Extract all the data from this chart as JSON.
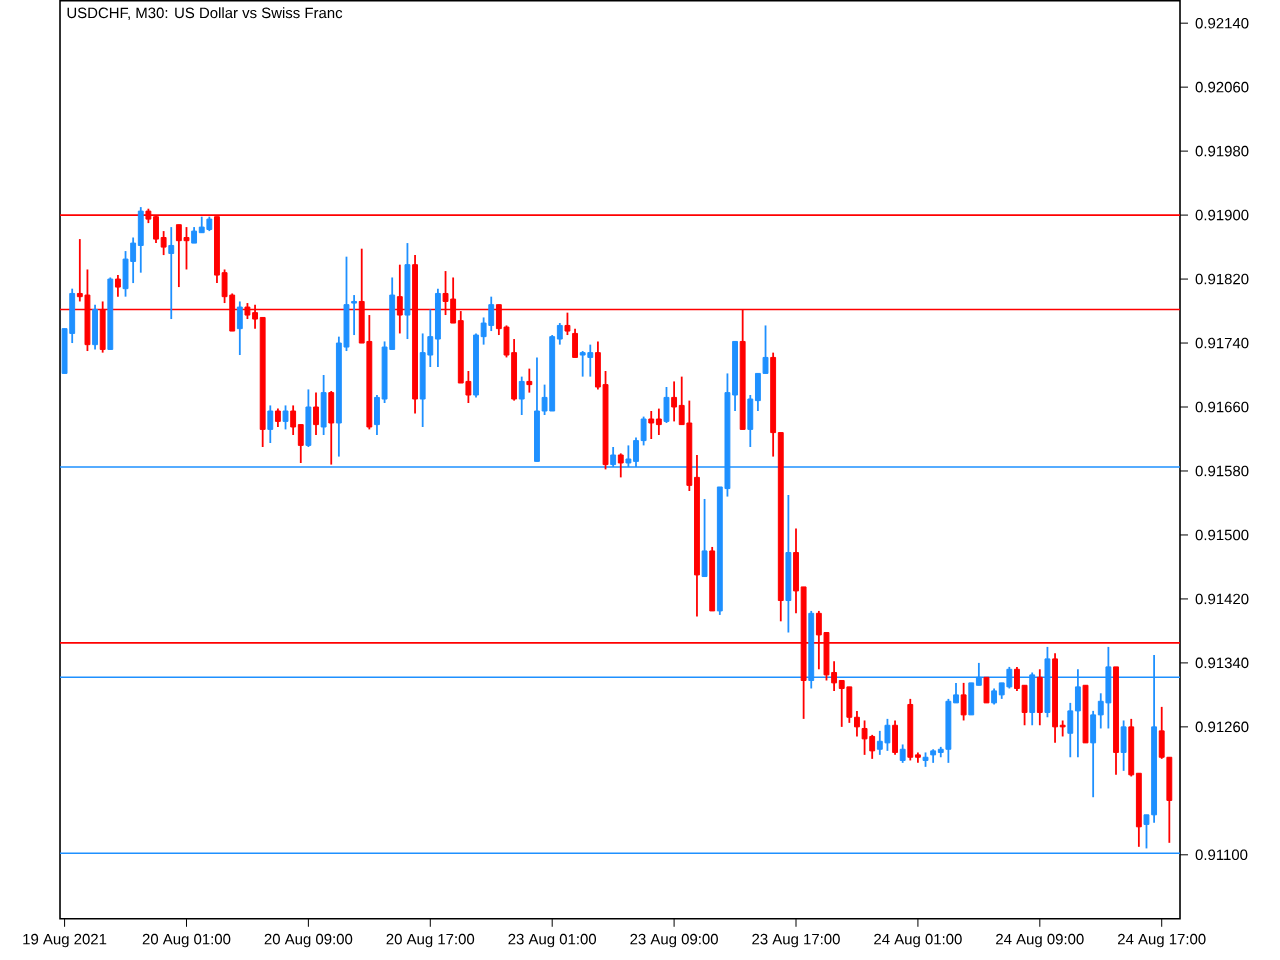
{
  "chart_data": {
    "type": "candlestick",
    "title": "USDCHF, M30:  US Dollar vs Swiss Franc",
    "categories": [
      "19 Aug 2021",
      null,
      null,
      null,
      null,
      null,
      null,
      null,
      null,
      null,
      null,
      null,
      null,
      null,
      null,
      null,
      "20 Aug 01:00",
      null,
      null,
      null,
      null,
      null,
      null,
      null,
      null,
      null,
      null,
      null,
      null,
      null,
      null,
      null,
      "20 Aug 09:00",
      null,
      null,
      null,
      null,
      null,
      null,
      null,
      null,
      null,
      null,
      null,
      null,
      null,
      null,
      null,
      "20 Aug 17:00",
      null,
      null,
      null,
      null,
      null,
      null,
      null,
      null,
      null,
      null,
      null,
      null,
      null,
      null,
      null,
      "23 Aug 01:00",
      null,
      null,
      null,
      null,
      null,
      null,
      null,
      null,
      null,
      null,
      null,
      null,
      null,
      null,
      null,
      "23 Aug 09:00",
      null,
      null,
      null,
      null,
      null,
      null,
      null,
      null,
      null,
      null,
      null,
      null,
      null,
      null,
      null,
      "23 Aug 17:00",
      null,
      null,
      null,
      null,
      null,
      null,
      null,
      null,
      null,
      null,
      null,
      null,
      null,
      null,
      null,
      "24 Aug 01:00",
      null,
      null,
      null,
      null,
      null,
      null,
      null,
      null,
      null,
      null,
      null,
      null,
      null,
      null,
      null,
      "24 Aug 09:00",
      null,
      null,
      null,
      null,
      null,
      null,
      null,
      null,
      null,
      null,
      null,
      null,
      null,
      null,
      null,
      "24 Aug 17:00",
      null
    ],
    "ohlc": [
      [
        0.91702,
        0.91758,
        0.91702,
        0.91758
      ],
      [
        0.91752,
        0.91808,
        0.9174,
        0.91802
      ],
      [
        0.91802,
        0.9187,
        0.91792,
        0.91798
      ],
      [
        0.918,
        0.91832,
        0.9173,
        0.91738
      ],
      [
        0.91738,
        0.91788,
        0.91732,
        0.91782
      ],
      [
        0.91782,
        0.91792,
        0.91728,
        0.91732
      ],
      [
        0.91732,
        0.91822,
        0.91732,
        0.9182
      ],
      [
        0.9182,
        0.91825,
        0.91798,
        0.9181
      ],
      [
        0.91808,
        0.91855,
        0.91798,
        0.91845
      ],
      [
        0.91842,
        0.91872,
        0.91815,
        0.91865
      ],
      [
        0.91862,
        0.9191,
        0.91828,
        0.91905
      ],
      [
        0.91905,
        0.91908,
        0.9189,
        0.91895
      ],
      [
        0.91898,
        0.919,
        0.91865,
        0.9187
      ],
      [
        0.91872,
        0.9188,
        0.9185,
        0.9186
      ],
      [
        0.91852,
        0.91885,
        0.9177,
        0.91862
      ],
      [
        0.91888,
        0.91888,
        0.9181,
        0.91868
      ],
      [
        0.91872,
        0.91885,
        0.91832,
        0.91868
      ],
      [
        0.91865,
        0.91885,
        0.91865,
        0.9188
      ],
      [
        0.91878,
        0.91898,
        0.91878,
        0.91885
      ],
      [
        0.91882,
        0.91898,
        0.9188,
        0.91895
      ],
      [
        0.91898,
        0.91898,
        0.91815,
        0.91825
      ],
      [
        0.91828,
        0.91832,
        0.9179,
        0.91798
      ],
      [
        0.918,
        0.91802,
        0.91755,
        0.91755
      ],
      [
        0.91758,
        0.91792,
        0.91725,
        0.91785
      ],
      [
        0.91785,
        0.9179,
        0.9177,
        0.91775
      ],
      [
        0.91778,
        0.91788,
        0.91758,
        0.9177
      ],
      [
        0.91772,
        0.91772,
        0.9161,
        0.91632
      ],
      [
        0.91632,
        0.91662,
        0.91615,
        0.91655
      ],
      [
        0.91655,
        0.91658,
        0.91635,
        0.91642
      ],
      [
        0.91642,
        0.91662,
        0.91632,
        0.91655
      ],
      [
        0.91655,
        0.91662,
        0.91625,
        0.91635
      ],
      [
        0.91638,
        0.91638,
        0.9159,
        0.91612
      ],
      [
        0.91612,
        0.91682,
        0.9161,
        0.9166
      ],
      [
        0.9166,
        0.91678,
        0.91625,
        0.91638
      ],
      [
        0.91635,
        0.917,
        0.91625,
        0.91678
      ],
      [
        0.91678,
        0.9168,
        0.91588,
        0.9164
      ],
      [
        0.9164,
        0.91748,
        0.91598,
        0.9174
      ],
      [
        0.91735,
        0.91848,
        0.9173,
        0.91788
      ],
      [
        0.9179,
        0.918,
        0.9175,
        0.91792
      ],
      [
        0.91792,
        0.91858,
        0.9174,
        0.9174
      ],
      [
        0.91742,
        0.91775,
        0.91632,
        0.91635
      ],
      [
        0.91638,
        0.91675,
        0.91625,
        0.91672
      ],
      [
        0.9167,
        0.91742,
        0.91665,
        0.91735
      ],
      [
        0.91732,
        0.91822,
        0.91732,
        0.918
      ],
      [
        0.91798,
        0.91838,
        0.91752,
        0.91775
      ],
      [
        0.91775,
        0.91865,
        0.91745,
        0.91838
      ],
      [
        0.91838,
        0.9185,
        0.91652,
        0.9167
      ],
      [
        0.9167,
        0.91752,
        0.91635,
        0.91728
      ],
      [
        0.91725,
        0.91782,
        0.9171,
        0.91748
      ],
      [
        0.91745,
        0.91808,
        0.9171,
        0.91802
      ],
      [
        0.91802,
        0.9183,
        0.91775,
        0.91792
      ],
      [
        0.91795,
        0.91822,
        0.91765,
        0.91765
      ],
      [
        0.91768,
        0.9178,
        0.9169,
        0.9169
      ],
      [
        0.91692,
        0.91705,
        0.91665,
        0.91675
      ],
      [
        0.91675,
        0.91752,
        0.91672,
        0.9175
      ],
      [
        0.91748,
        0.91772,
        0.91738,
        0.91765
      ],
      [
        0.91762,
        0.91798,
        0.91755,
        0.91788
      ],
      [
        0.91788,
        0.91788,
        0.9175,
        0.91758
      ],
      [
        0.9176,
        0.91762,
        0.91722,
        0.91725
      ],
      [
        0.91728,
        0.91745,
        0.91668,
        0.9167
      ],
      [
        0.9167,
        0.91698,
        0.9165,
        0.91692
      ],
      [
        0.91692,
        0.91708,
        0.91678,
        0.91688
      ],
      [
        0.91592,
        0.91722,
        0.91592,
        0.91655
      ],
      [
        0.91655,
        0.91688,
        0.9165,
        0.91672
      ],
      [
        0.91655,
        0.9175,
        0.91655,
        0.91748
      ],
      [
        0.91745,
        0.91765,
        0.91738,
        0.91762
      ],
      [
        0.91762,
        0.91778,
        0.9175,
        0.91755
      ],
      [
        0.91752,
        0.91758,
        0.91722,
        0.91722
      ],
      [
        0.91725,
        0.9173,
        0.91698,
        0.91728
      ],
      [
        0.91722,
        0.91738,
        0.91698,
        0.91728
      ],
      [
        0.91728,
        0.91742,
        0.91682,
        0.91685
      ],
      [
        0.91688,
        0.91705,
        0.91582,
        0.91588
      ],
      [
        0.91588,
        0.9161,
        0.91585,
        0.916
      ],
      [
        0.916,
        0.91602,
        0.91572,
        0.9159
      ],
      [
        0.9159,
        0.91612,
        0.91585,
        0.91595
      ],
      [
        0.91592,
        0.91622,
        0.91585,
        0.91618
      ],
      [
        0.91618,
        0.91648,
        0.91612,
        0.91645
      ],
      [
        0.91645,
        0.91655,
        0.9162,
        0.9164
      ],
      [
        0.91645,
        0.91658,
        0.91625,
        0.91638
      ],
      [
        0.91642,
        0.91685,
        0.9164,
        0.91672
      ],
      [
        0.91672,
        0.91692,
        0.91642,
        0.9166
      ],
      [
        0.91662,
        0.91698,
        0.91638,
        0.91638
      ],
      [
        0.9164,
        0.91668,
        0.91555,
        0.91562
      ],
      [
        0.91572,
        0.916,
        0.91398,
        0.9145
      ],
      [
        0.91448,
        0.91545,
        0.91448,
        0.9148
      ],
      [
        0.9148,
        0.91485,
        0.91405,
        0.91405
      ],
      [
        0.91405,
        0.9156,
        0.914,
        0.9156
      ],
      [
        0.91558,
        0.91702,
        0.91548,
        0.91678
      ],
      [
        0.91675,
        0.91742,
        0.91655,
        0.91742
      ],
      [
        0.91742,
        0.91782,
        0.91632,
        0.91632
      ],
      [
        0.91632,
        0.91675,
        0.9161,
        0.9167
      ],
      [
        0.91668,
        0.91702,
        0.91655,
        0.91702
      ],
      [
        0.91702,
        0.91762,
        0.91702,
        0.91722
      ],
      [
        0.91722,
        0.91728,
        0.91598,
        0.91628
      ],
      [
        0.91628,
        0.91628,
        0.91392,
        0.91418
      ],
      [
        0.91418,
        0.9155,
        0.91378,
        0.91478
      ],
      [
        0.91478,
        0.91508,
        0.91402,
        0.9143
      ],
      [
        0.91435,
        0.91435,
        0.9127,
        0.91318
      ],
      [
        0.91318,
        0.91405,
        0.91308,
        0.91402
      ],
      [
        0.91402,
        0.91405,
        0.91332,
        0.91375
      ],
      [
        0.91378,
        0.91378,
        0.91318,
        0.91325
      ],
      [
        0.91328,
        0.91342,
        0.91305,
        0.91315
      ],
      [
        0.91318,
        0.91318,
        0.9126,
        0.91308
      ],
      [
        0.9131,
        0.9131,
        0.91265,
        0.91272
      ],
      [
        0.91272,
        0.9128,
        0.91248,
        0.9126
      ],
      [
        0.91258,
        0.91268,
        0.91225,
        0.91245
      ],
      [
        0.91248,
        0.9125,
        0.9122,
        0.9123
      ],
      [
        0.91232,
        0.91255,
        0.91225,
        0.91242
      ],
      [
        0.9124,
        0.9127,
        0.9123,
        0.91262
      ],
      [
        0.91262,
        0.91268,
        0.91225,
        0.91228
      ],
      [
        0.91218,
        0.91238,
        0.91215,
        0.91232
      ],
      [
        0.91288,
        0.91295,
        0.91218,
        0.91222
      ],
      [
        0.91225,
        0.91228,
        0.91215,
        0.91222
      ],
      [
        0.91218,
        0.91228,
        0.9121,
        0.91222
      ],
      [
        0.91225,
        0.91232,
        0.91215,
        0.9123
      ],
      [
        0.91228,
        0.91235,
        0.91222,
        0.91232
      ],
      [
        0.91232,
        0.91295,
        0.91215,
        0.91292
      ],
      [
        0.9129,
        0.91315,
        0.9129,
        0.913
      ],
      [
        0.913,
        0.91315,
        0.91268,
        0.91275
      ],
      [
        0.91275,
        0.91315,
        0.91275,
        0.91315
      ],
      [
        0.91312,
        0.9134,
        0.91312,
        0.91322
      ],
      [
        0.91322,
        0.91322,
        0.9129,
        0.9129
      ],
      [
        0.9129,
        0.91308,
        0.91288,
        0.91305
      ],
      [
        0.913,
        0.91315,
        0.91295,
        0.91315
      ],
      [
        0.9131,
        0.91335,
        0.91308,
        0.91332
      ],
      [
        0.91332,
        0.91335,
        0.91305,
        0.91308
      ],
      [
        0.91312,
        0.91312,
        0.91262,
        0.91278
      ],
      [
        0.91278,
        0.91328,
        0.91262,
        0.91325
      ],
      [
        0.91322,
        0.91332,
        0.91262,
        0.91278
      ],
      [
        0.91278,
        0.9136,
        0.91272,
        0.91345
      ],
      [
        0.91345,
        0.91352,
        0.9124,
        0.9126
      ],
      [
        0.91262,
        0.91268,
        0.91248,
        0.9126
      ],
      [
        0.91252,
        0.9129,
        0.91222,
        0.9128
      ],
      [
        0.9128,
        0.91332,
        0.91222,
        0.9131
      ],
      [
        0.91312,
        0.91312,
        0.9124,
        0.9124
      ],
      [
        0.9124,
        0.9128,
        0.91172,
        0.91275
      ],
      [
        0.91275,
        0.91302,
        0.91258,
        0.91292
      ],
      [
        0.9129,
        0.9136,
        0.91258,
        0.91335
      ],
      [
        0.91335,
        0.91335,
        0.912,
        0.91228
      ],
      [
        0.91228,
        0.91268,
        0.91205,
        0.9126
      ],
      [
        0.9126,
        0.9127,
        0.91198,
        0.912
      ],
      [
        0.91202,
        0.91202,
        0.9111,
        0.91135
      ],
      [
        0.91138,
        0.9115,
        0.91108,
        0.9115
      ],
      [
        0.9115,
        0.9135,
        0.9114,
        0.9126
      ],
      [
        0.91255,
        0.91285,
        0.9122,
        0.91222
      ],
      [
        0.91222,
        0.91222,
        0.91115,
        0.91168
      ]
    ],
    "ylim": [
      0.9102,
      0.92168
    ],
    "yticks": [
      {
        "value": 0.9214,
        "label": "0.92140"
      },
      {
        "value": 0.9206,
        "label": "0.92060"
      },
      {
        "value": 0.9198,
        "label": "0.91980"
      },
      {
        "value": 0.919,
        "label": "0.91900"
      },
      {
        "value": 0.9182,
        "label": "0.91820"
      },
      {
        "value": 0.9174,
        "label": "0.91740"
      },
      {
        "value": 0.9166,
        "label": "0.91660"
      },
      {
        "value": 0.9158,
        "label": "0.91580"
      },
      {
        "value": 0.915,
        "label": "0.91500"
      },
      {
        "value": 0.9142,
        "label": "0.91420"
      },
      {
        "value": 0.9134,
        "label": "0.91340"
      },
      {
        "value": 0.9126,
        "label": "0.91260"
      },
      {
        "value": 0.911,
        "label": "0.91100"
      }
    ],
    "ref_lines": [
      {
        "axis": "y",
        "value": 0.919,
        "color": "#ff0000"
      },
      {
        "axis": "y",
        "value": 0.91782,
        "color": "#ff0000"
      },
      {
        "axis": "y",
        "value": 0.91585,
        "color": "#1e90ff"
      },
      {
        "axis": "y",
        "value": 0.91322,
        "color": "#1e90ff"
      },
      {
        "axis": "y",
        "value": 0.91365,
        "color": "#ff0000"
      },
      {
        "axis": "y",
        "value": 0.91102,
        "color": "#1e90ff"
      }
    ]
  }
}
